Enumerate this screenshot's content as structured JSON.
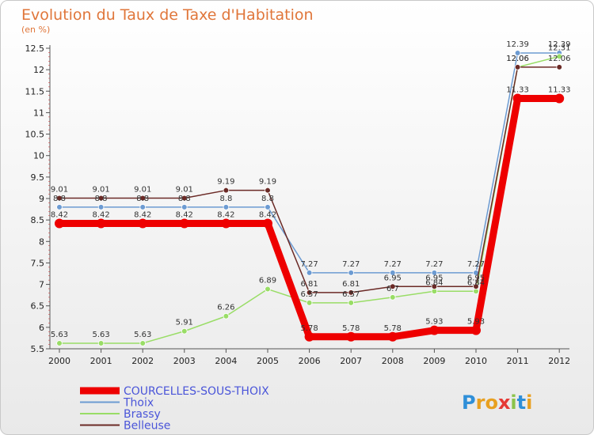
{
  "chart_data": {
    "type": "line",
    "title": "Evolution du Taux de Taxe d'Habitation",
    "subtitle": "(en %)",
    "categories": [
      "2000",
      "2001",
      "2002",
      "2003",
      "2004",
      "2005",
      "2006",
      "2007",
      "2008",
      "2009",
      "2010",
      "2011",
      "2012"
    ],
    "ylim": [
      5.5,
      12.5
    ],
    "yticks": [
      "5.5",
      "6",
      "6.5",
      "7",
      "7.5",
      "8",
      "8.5",
      "9",
      "9.5",
      "10",
      "10.5",
      "11",
      "11.5",
      "12",
      "12.5"
    ],
    "grid": false,
    "legend_position": "bottom-left",
    "series": [
      {
        "name": "COURCELLES-SOUS-THOIX",
        "color": "#ee0000",
        "values": [
          8.42,
          8.42,
          8.42,
          8.42,
          8.42,
          8.42,
          5.78,
          5.78,
          5.78,
          5.93,
          5.93,
          11.33,
          11.33
        ],
        "labels": [
          "8.42",
          "8.42",
          "8.42",
          "8.42",
          "8.42",
          "8.42",
          "5.78",
          "5.78",
          "5.78",
          "5.93",
          "5.93",
          "11.33",
          "11.33"
        ]
      },
      {
        "name": "Thoix",
        "color": "#6c9bd2",
        "values": [
          8.8,
          8.8,
          8.8,
          8.8,
          8.8,
          8.8,
          7.27,
          7.27,
          7.27,
          7.27,
          7.27,
          12.39,
          12.39
        ],
        "labels": [
          "8.8",
          "8.8",
          "8.8",
          "8.8",
          "8.8",
          "8.8",
          "7.27",
          "7.27",
          "7.27",
          "7.27",
          "7.27",
          "12.39",
          "12.39"
        ]
      },
      {
        "name": "Brassy",
        "color": "#99dd66",
        "values": [
          5.63,
          5.63,
          5.63,
          5.91,
          6.26,
          6.89,
          6.57,
          6.57,
          6.7,
          6.84,
          6.84,
          12.06,
          12.31
        ],
        "labels": [
          "5.63",
          "5.63",
          "5.63",
          "5.91",
          "6.26",
          "6.89",
          "6.57",
          "6.57",
          "6.7",
          "6.84",
          "6.84",
          "12.06",
          "12.31"
        ]
      },
      {
        "name": "Belleuse",
        "color": "#6b2a26",
        "values": [
          9.01,
          9.01,
          9.01,
          9.01,
          9.19,
          9.19,
          6.81,
          6.81,
          6.95,
          6.95,
          6.95,
          12.06,
          12.06
        ],
        "labels": [
          "9.01",
          "9.01",
          "9.01",
          "9.01",
          "9.19",
          "9.19",
          "6.81",
          "6.81",
          "6.95",
          "6.95",
          "6.95",
          "12.06",
          "12.06"
        ]
      }
    ]
  },
  "logo": {
    "text": "Proxiti",
    "letter_colors": [
      "#2f8fd8",
      "#e8a020",
      "#e8a020",
      "#e53935",
      "#8bc34a",
      "#2f8fd8",
      "#e8a020"
    ]
  }
}
